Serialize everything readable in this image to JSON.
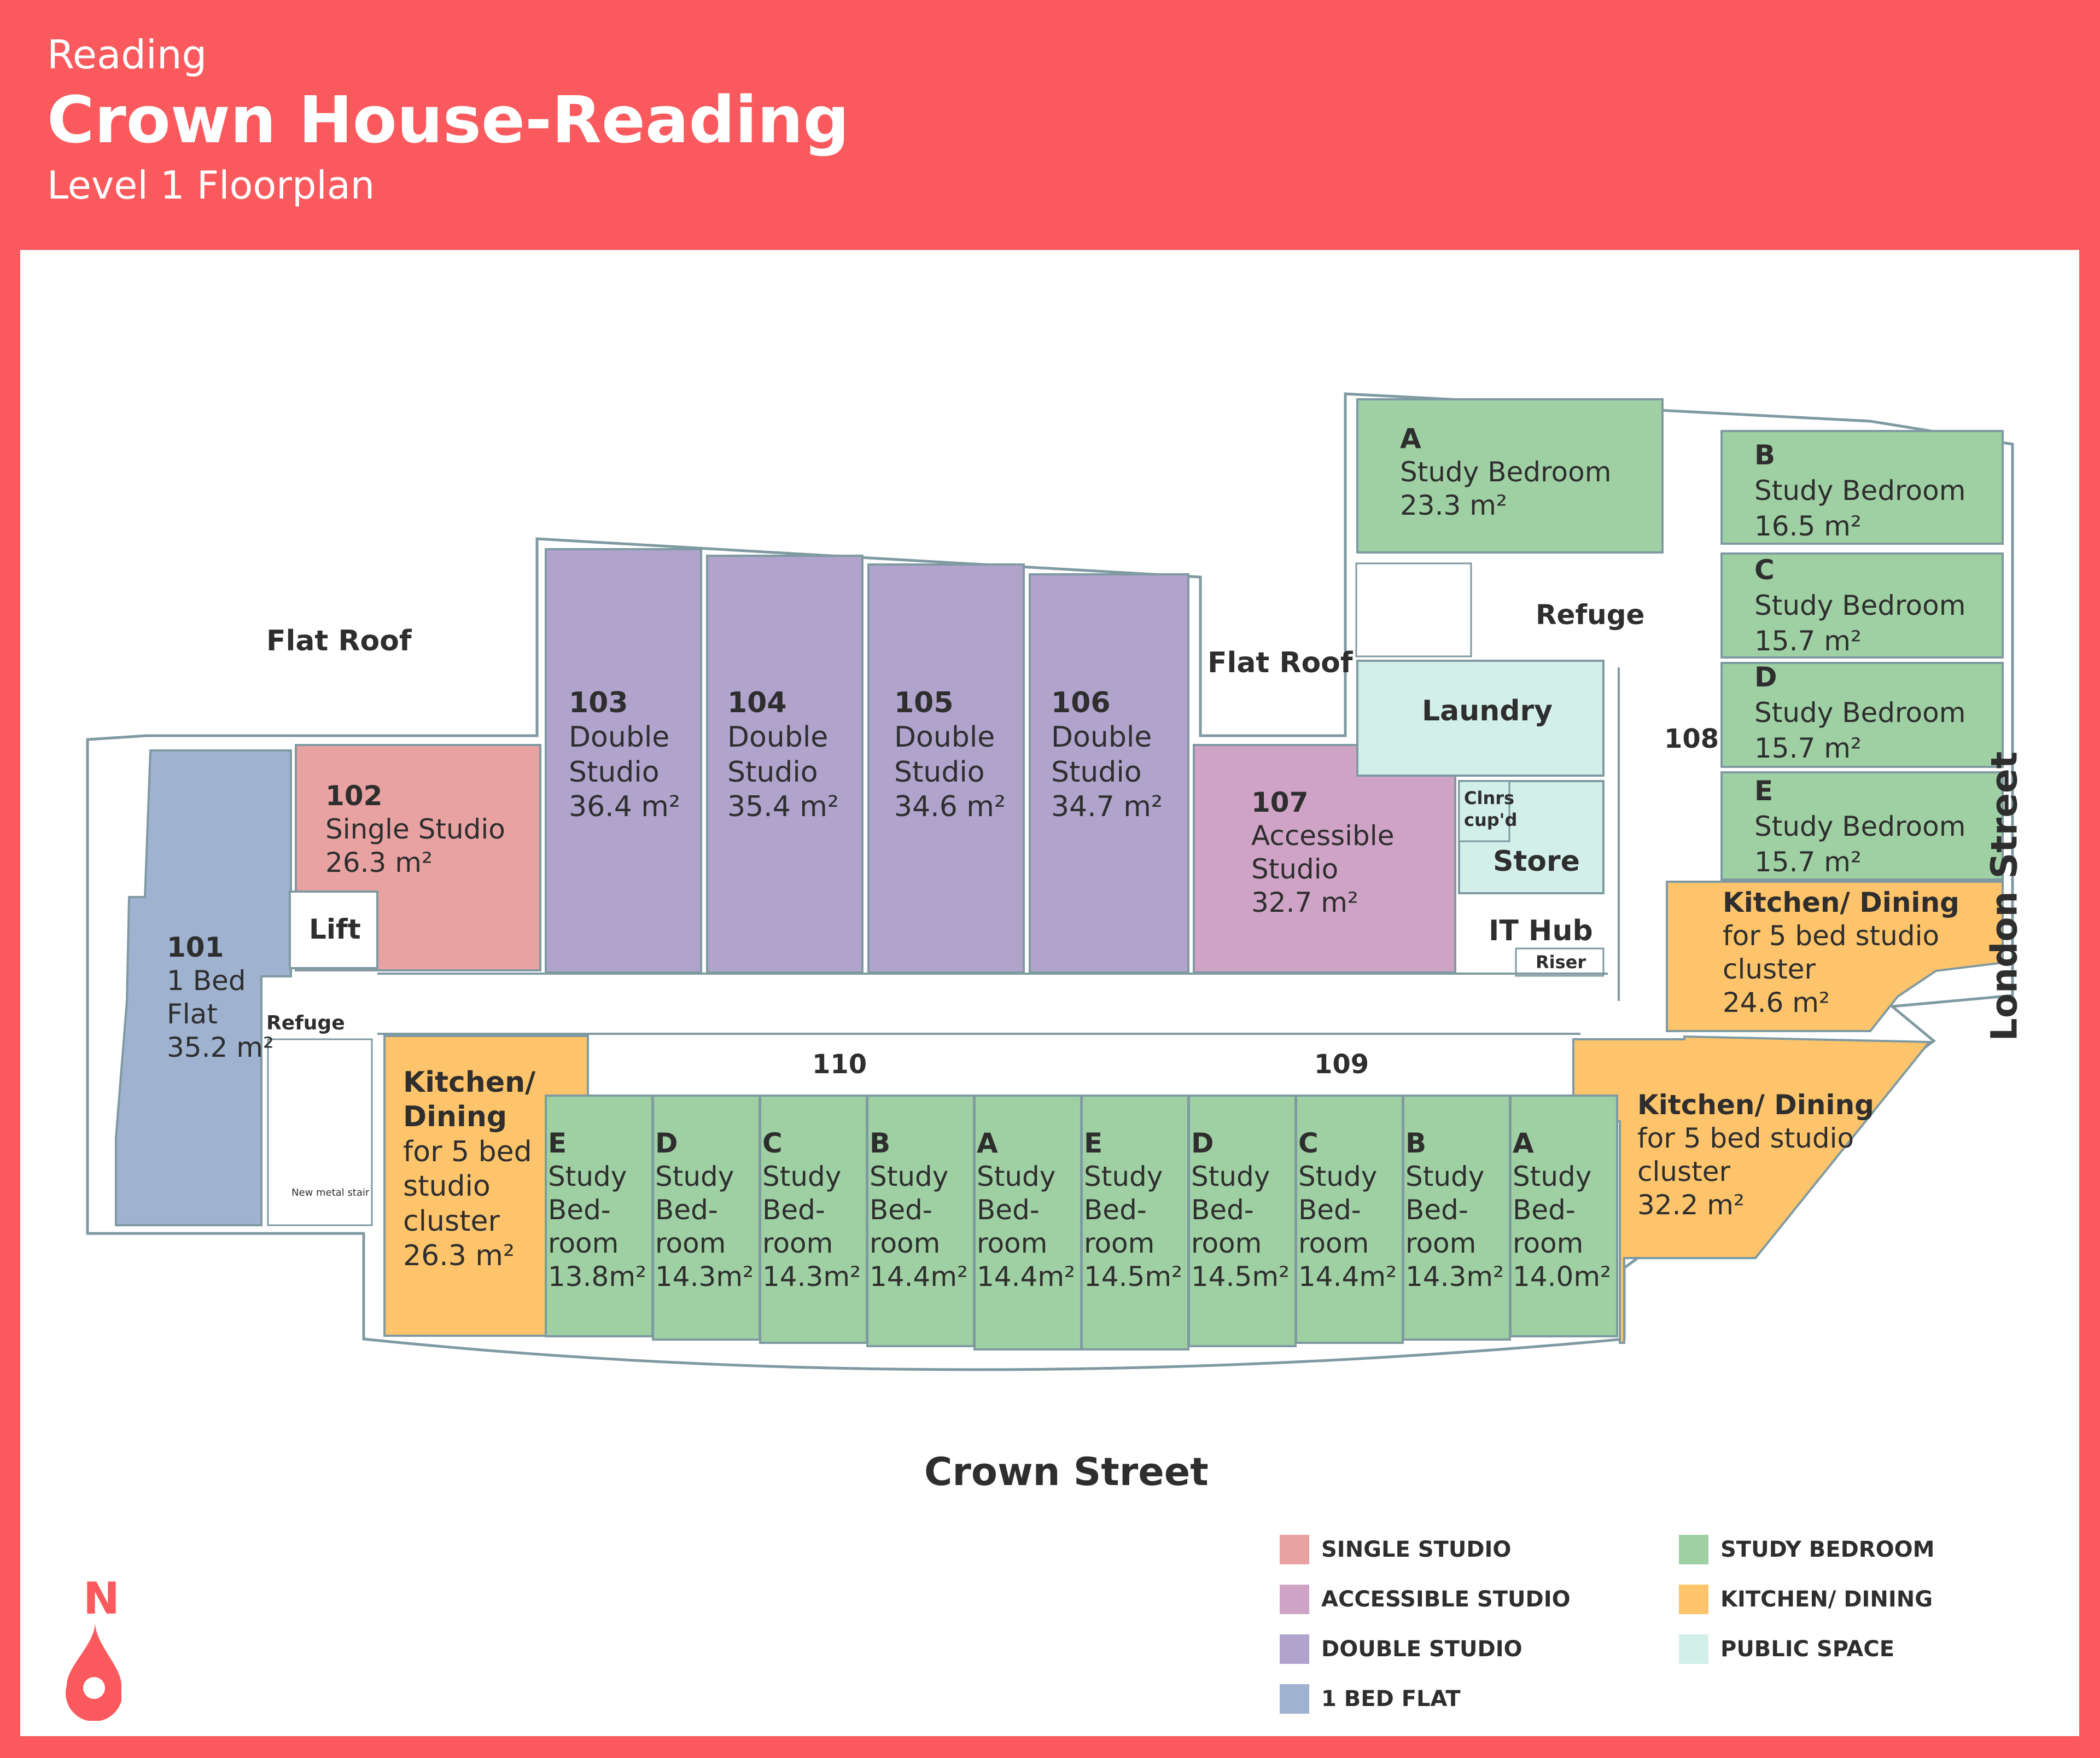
{
  "header": {
    "city": "Reading",
    "title": "Crown House-Reading",
    "subtitle": "Level 1 Floorplan"
  },
  "colors": {
    "brand": "#fa5a5d",
    "single_studio": "#e8a2a2",
    "accessible_studio": "#cfa3c6",
    "double_studio": "#b0a3cc",
    "one_bed_flat": "#9fb2cf",
    "study_bedroom": "#9fd0a3",
    "kitchen_dining": "#fdc46b",
    "public_space": "#d3efe9"
  },
  "rooms": {
    "r101": {
      "no": "101",
      "l1": "1 Bed",
      "l2": "Flat",
      "area": "35.2 m²"
    },
    "r102": {
      "no": "102",
      "l1": "Single Studio",
      "area": "26.3 m²"
    },
    "r103": {
      "no": "103",
      "l1": "Double",
      "l2": "Studio",
      "area": "36.4 m²"
    },
    "r104": {
      "no": "104",
      "l1": "Double",
      "l2": "Studio",
      "area": "35.4 m²"
    },
    "r105": {
      "no": "105",
      "l1": "Double",
      "l2": "Studio",
      "area": "34.6 m²"
    },
    "r106": {
      "no": "106",
      "l1": "Double",
      "l2": "Studio",
      "area": "34.7 m²"
    },
    "r107": {
      "no": "107",
      "l1": "Accessible",
      "l2": "Studio",
      "area": "32.7 m²"
    },
    "r108A": {
      "no": "A",
      "l1": "Study Bedroom",
      "area": "23.3 m²"
    },
    "r108B": {
      "no": "B",
      "l1": "Study Bedroom",
      "area": "16.5 m²"
    },
    "r108C": {
      "no": "C",
      "l1": "Study Bedroom",
      "area": "15.7 m²"
    },
    "r108D": {
      "no": "D",
      "l1": "Study Bedroom",
      "area": "15.7 m²"
    },
    "r108E": {
      "no": "E",
      "l1": "Study Bedroom",
      "area": "15.7 m²"
    },
    "k108": {
      "l1": "Kitchen/ Dining",
      "l2": "for 5 bed studio",
      "l3": "cluster",
      "area": "24.6 m²"
    },
    "k109": {
      "l1": "Kitchen/ Dining",
      "l2": "for 5 bed studio",
      "l3": "cluster",
      "area": "32.2 m²"
    },
    "k110": {
      "l1": "Kitchen/",
      "l2": "Dining",
      "l3": "for 5 bed",
      "l4": "studio",
      "l5": "cluster",
      "area": "26.3 m²"
    },
    "strip": [
      {
        "no": "E",
        "l1": "Study",
        "l2": "Bed-",
        "l3": "room",
        "area": "13.8m²"
      },
      {
        "no": "D",
        "l1": "Study",
        "l2": "Bed-",
        "l3": "room",
        "area": "14.3m²"
      },
      {
        "no": "C",
        "l1": "Study",
        "l2": "Bed-",
        "l3": "room",
        "area": "14.3m²"
      },
      {
        "no": "B",
        "l1": "Study",
        "l2": "Bed-",
        "l3": "room",
        "area": "14.4m²"
      },
      {
        "no": "A",
        "l1": "Study",
        "l2": "Bed-",
        "l3": "room",
        "area": "14.4m²"
      },
      {
        "no": "E",
        "l1": "Study",
        "l2": "Bed-",
        "l3": "room",
        "area": "14.5m²"
      },
      {
        "no": "D",
        "l1": "Study",
        "l2": "Bed-",
        "l3": "room",
        "area": "14.5m²"
      },
      {
        "no": "C",
        "l1": "Study",
        "l2": "Bed-",
        "l3": "room",
        "area": "14.4m²"
      },
      {
        "no": "B",
        "l1": "Study",
        "l2": "Bed-",
        "l3": "room",
        "area": "14.3m²"
      },
      {
        "no": "A",
        "l1": "Study",
        "l2": "Bed-",
        "l3": "room",
        "area": "14.0m²"
      }
    ]
  },
  "labels": {
    "flat_roof_left": "Flat Roof",
    "flat_roof_right": "Flat Roof",
    "lift": "Lift",
    "refuge_left": "Refuge",
    "refuge_top": "Refuge",
    "new_metal_stair": "New metal stair",
    "laundry": "Laundry",
    "clnrs": "Clnrs",
    "cupd": "cup'd",
    "store": "Store",
    "it_hub": "IT Hub",
    "riser": "Riser",
    "corridor_108": "108",
    "corridor_109": "109",
    "corridor_110": "110",
    "crown_street": "Crown Street",
    "london_street": "London Street"
  },
  "legend": [
    {
      "label": "SINGLE STUDIO",
      "color": "#e8a2a2"
    },
    {
      "label": "ACCESSIBLE STUDIO",
      "color": "#cfa3c6"
    },
    {
      "label": "DOUBLE STUDIO",
      "color": "#b0a3cc"
    },
    {
      "label": "1 BED FLAT",
      "color": "#9fb2cf"
    },
    {
      "label": "STUDY BEDROOM",
      "color": "#9fd0a3"
    },
    {
      "label": "KITCHEN/ DINING",
      "color": "#fdc46b"
    },
    {
      "label": "PUBLIC SPACE",
      "color": "#d3efe9"
    }
  ],
  "compass": {
    "label": "N",
    "icon": "north-arrow-icon"
  }
}
